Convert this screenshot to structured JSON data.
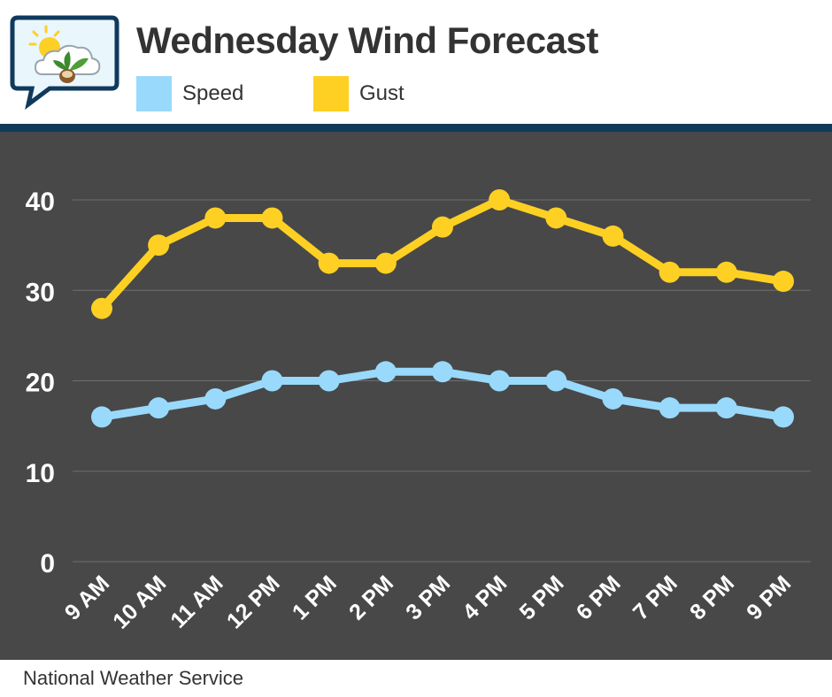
{
  "header": {
    "title": "Wednesday Wind Forecast",
    "logo_icon": "weather-chat-bubble-icon"
  },
  "legend": [
    {
      "label": "Speed",
      "color": "#99d9fb"
    },
    {
      "label": "Gust",
      "color": "#fdd023"
    }
  ],
  "footer": {
    "source": "National Weather Service"
  },
  "colors": {
    "plot_background": "#484848",
    "divider": "#0f3a5c",
    "gridline": "#6e6e6e",
    "tick_text": "#ffffff"
  },
  "chart_data": {
    "type": "line",
    "title": "Wednesday Wind Forecast",
    "categories": [
      "9 AM",
      "10 AM",
      "11 AM",
      "12 PM",
      "1 PM",
      "2 PM",
      "3 PM",
      "4 PM",
      "5 PM",
      "6 PM",
      "7 PM",
      "8 PM",
      "9 PM"
    ],
    "series": [
      {
        "name": "Speed",
        "color": "#99d9fb",
        "values": [
          16,
          17,
          18,
          20,
          20,
          21,
          21,
          20,
          20,
          18,
          17,
          17,
          16
        ]
      },
      {
        "name": "Gust",
        "color": "#fdd023",
        "values": [
          28,
          35,
          38,
          38,
          33,
          33,
          37,
          40,
          38,
          36,
          32,
          32,
          31
        ]
      }
    ],
    "xlabel": "",
    "ylabel": "",
    "ylim": [
      0,
      40
    ],
    "yticks": [
      0,
      10,
      20,
      30,
      40
    ],
    "grid": true,
    "legend_position": "top"
  }
}
